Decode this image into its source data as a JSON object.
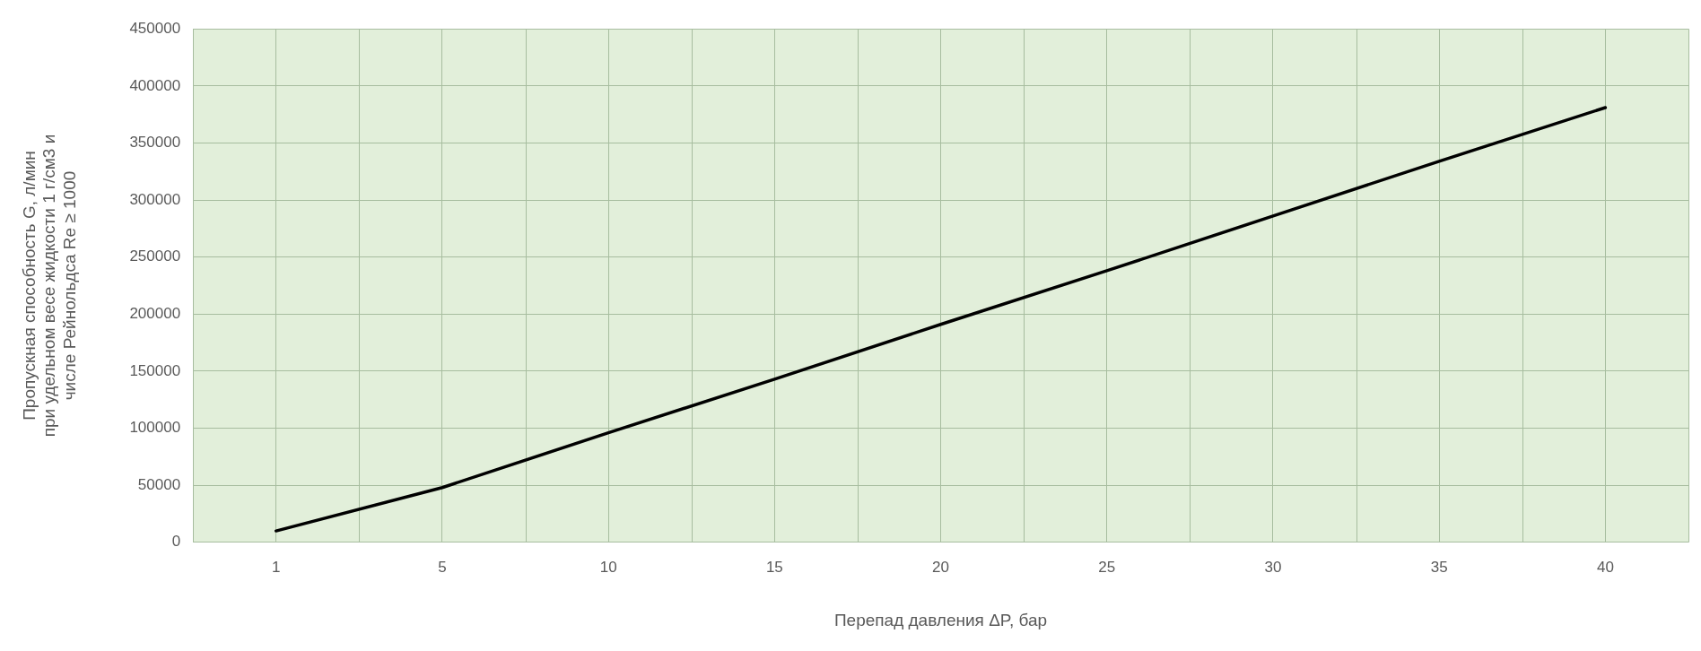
{
  "chart_data": {
    "type": "line",
    "xlabel": "Перепад давления ΔP, бар",
    "ylabel": "Пропускная способность G, л/мин\nпри удельном весе жидкости 1 г/см3 и\nчисле Рейнольдса Re ≥ 1000",
    "categories": [
      "1",
      "5",
      "10",
      "15",
      "20",
      "25",
      "30",
      "35",
      "40"
    ],
    "series": [
      {
        "color": "#000000",
        "values": [
          10000,
          48000,
          96000,
          143000,
          191000,
          238000,
          286000,
          334000,
          381000
        ]
      }
    ],
    "ylim": [
      0,
      450000
    ],
    "yticks": [
      0,
      50000,
      100000,
      150000,
      200000,
      250000,
      300000,
      350000,
      400000,
      450000
    ],
    "grid": true,
    "legend": false,
    "marker": "none",
    "line_style": "solid"
  }
}
